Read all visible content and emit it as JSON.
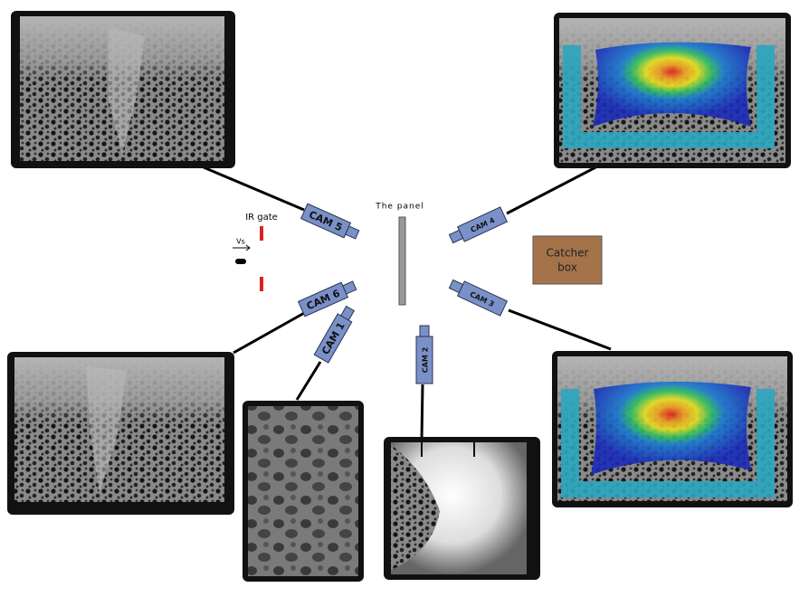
{
  "labels": {
    "panel": "The panel",
    "ir_gate": "IR gate",
    "velocity": "Vs",
    "catcher_box": [
      "Catcher",
      "box"
    ]
  },
  "cameras": [
    {
      "label": "CAM 1"
    },
    {
      "label": "CAM 2"
    },
    {
      "label": "CAM 3"
    },
    {
      "label": "CAM 4"
    },
    {
      "label": "CAM 5"
    },
    {
      "label": "CAM 6"
    }
  ]
}
